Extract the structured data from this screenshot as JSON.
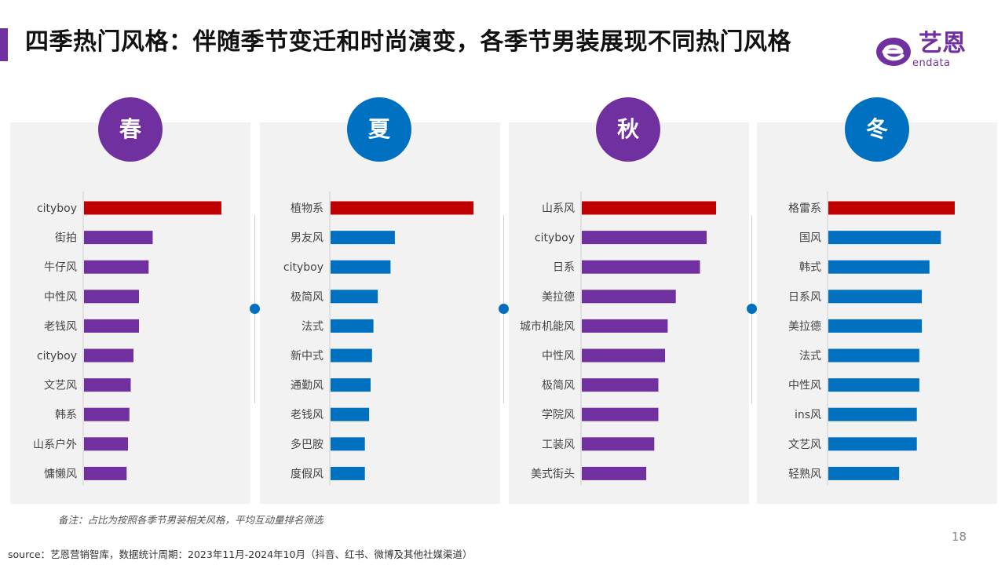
{
  "header": {
    "title": "四季热门风格：伴随季节变迁和时尚演变，各季节男装展现不同热门风格",
    "logo_text": "艺恩",
    "logo_sub": "endata"
  },
  "colors": {
    "accent": "#7030a0",
    "top_bar": "#c00000",
    "purple_bar": "#7030a0",
    "blue_bar": "#0070c0",
    "panel_bg": "#f2f2f2"
  },
  "chart_data": [
    {
      "type": "bar",
      "orientation": "horizontal",
      "title": "春",
      "categories": [
        "cityboy",
        "街拍",
        "牛仔风",
        "中性风",
        "老钱风",
        "cityboy",
        "文艺风",
        "韩系",
        "山系户外",
        "慵懒风"
      ],
      "values": [
        100,
        50,
        47,
        40,
        40,
        36,
        34,
        33,
        32,
        31
      ],
      "xlim": [
        0,
        100
      ],
      "grid": false
    },
    {
      "type": "bar",
      "orientation": "horizontal",
      "title": "夏",
      "categories": [
        "植物系",
        "男友风",
        "cityboy",
        "极简风",
        "法式",
        "新中式",
        "通勤风",
        "老钱风",
        "多巴胺",
        "度假风"
      ],
      "values": [
        100,
        45,
        42,
        33,
        30,
        29,
        28,
        27,
        24,
        24
      ],
      "xlim": [
        0,
        100
      ],
      "grid": false
    },
    {
      "type": "bar",
      "orientation": "horizontal",
      "title": "秋",
      "categories": [
        "山系风",
        "cityboy",
        "日系",
        "美拉德",
        "城市机能风",
        "中性风",
        "极简风",
        "学院风",
        "工装风",
        "美式街头"
      ],
      "values": [
        100,
        93,
        88,
        70,
        64,
        62,
        57,
        57,
        54,
        48
      ],
      "xlim": [
        0,
        100
      ],
      "grid": false
    },
    {
      "type": "bar",
      "orientation": "horizontal",
      "title": "冬",
      "categories": [
        "格雷系",
        "国风",
        "韩式",
        "日系风",
        "美拉德",
        "法式",
        "中性风",
        "ins风",
        "文艺风",
        "轻熟风"
      ],
      "values": [
        100,
        89,
        80,
        74,
        74,
        72,
        72,
        70,
        70,
        56
      ],
      "xlim": [
        0,
        100
      ],
      "grid": false
    }
  ],
  "footer": {
    "note": "备注：占比为按照各季节男装相关风格，平均互动量排名筛选",
    "source": "source：艺恩营销智库，数据统计周期：2023年11月-2024年10月（抖音、红书、微博及其他社媒渠道）",
    "page_number": "18"
  }
}
